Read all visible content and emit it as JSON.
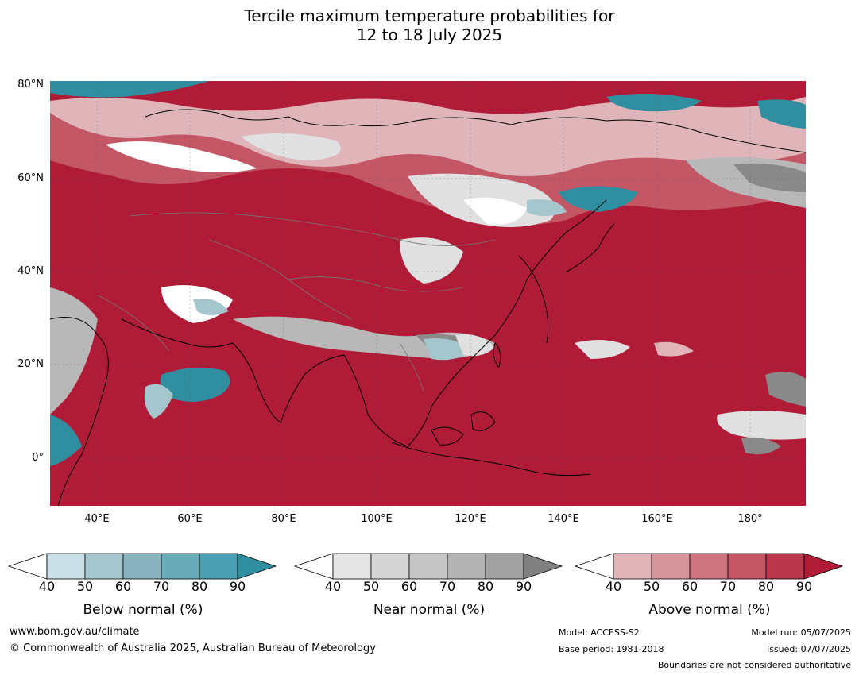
{
  "title": {
    "line1": "Tercile maximum temperature probabilities for",
    "line2": "12 to 18 July 2025"
  },
  "axes": {
    "lat_labels": [
      "80°N",
      "60°N",
      "40°N",
      "20°N",
      "0°"
    ],
    "lon_labels": [
      "40°E",
      "60°E",
      "80°E",
      "100°E",
      "120°E",
      "140°E",
      "160°E",
      "180°"
    ]
  },
  "legends": [
    {
      "title": "Below normal (%)",
      "ticks": [
        "40",
        "50",
        "60",
        "70",
        "80",
        "90"
      ],
      "colors": [
        "#ffffff",
        "#c8e0e6",
        "#a6c6cd",
        "#88b3bf",
        "#6aaab7",
        "#4aa0b0",
        "#2f8fa1"
      ]
    },
    {
      "title": "Near normal (%)",
      "ticks": [
        "40",
        "50",
        "60",
        "70",
        "80",
        "90"
      ],
      "colors": [
        "#ffffff",
        "#e5e5e5",
        "#d5d5d5",
        "#c5c5c5",
        "#b3b3b3",
        "#a1a1a1",
        "#808080"
      ]
    },
    {
      "title": "Above normal (%)",
      "ticks": [
        "40",
        "50",
        "60",
        "70",
        "80",
        "90"
      ],
      "colors": [
        "#ffffff",
        "#dfb5ba",
        "#d6959c",
        "#cc7580",
        "#c35766",
        "#b9384c",
        "#b01c37"
      ]
    }
  ],
  "footer": {
    "website": "www.bom.gov.au/climate",
    "copyright": "© Commonwealth of Australia 2025, Australian Bureau of Meteorology",
    "model": "Model: ACCESS-S2",
    "base_period": "Base period: 1981-2018",
    "model_run": "Model run: 05/07/2025",
    "issued": "Issued: 07/07/2025",
    "boundaries": "Boundaries are not considered authoritative"
  },
  "map_colors": {
    "above": "#b01c37",
    "above_mid": "#c35766",
    "above_light": "#dfb5ba",
    "near_light": "#e0e0e0",
    "near_mid": "#b8b8b8",
    "near_dark": "#8a8a8a",
    "below": "#2f8fa1",
    "below_light": "#a6c6cd"
  }
}
